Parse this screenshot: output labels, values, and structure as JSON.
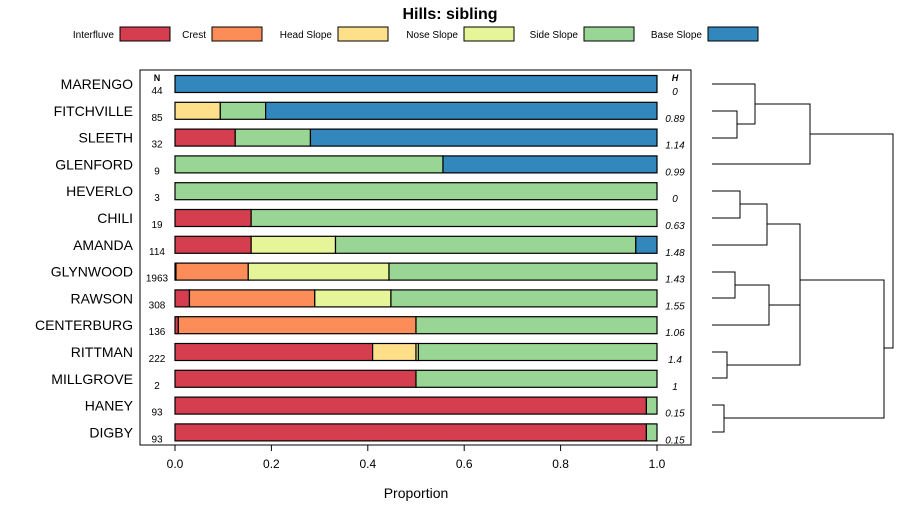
{
  "chart_data": {
    "type": "bar",
    "stacked": true,
    "orientation": "horizontal",
    "title": "Hills: sibling",
    "xlabel": "Proportion",
    "xlim": [
      0,
      1
    ],
    "xticks": [
      "0.0",
      "0.2",
      "0.4",
      "0.6",
      "0.8",
      "1.0"
    ],
    "n_header": "N",
    "h_header": "H",
    "legend": [
      {
        "name": "Interfluve",
        "color": "#d53e4f"
      },
      {
        "name": "Crest",
        "color": "#fc8d59"
      },
      {
        "name": "Head Slope",
        "color": "#fee08b"
      },
      {
        "name": "Nose Slope",
        "color": "#e6f598"
      },
      {
        "name": "Side Slope",
        "color": "#99d594"
      },
      {
        "name": "Base Slope",
        "color": "#3288bd"
      }
    ],
    "categories": [
      "MARENGO",
      "FITCHVILLE",
      "SLEETH",
      "GLENFORD",
      "HEVERLO",
      "CHILI",
      "AMANDA",
      "GLYNWOOD",
      "RAWSON",
      "CENTERBURG",
      "RITTMAN",
      "MILLGROVE",
      "HANEY",
      "DIGBY"
    ],
    "n": [
      "44",
      "85",
      "32",
      "9",
      "3",
      "19",
      "114",
      "1963",
      "308",
      "136",
      "222",
      "2",
      "93",
      "93"
    ],
    "h": [
      "0",
      "0.89",
      "1.14",
      "0.99",
      "0",
      "0.63",
      "1.48",
      "1.43",
      "1.55",
      "1.06",
      "1.4",
      "1",
      "0.15",
      "0.15"
    ],
    "series": [
      {
        "name": "Interfluve",
        "values": [
          0,
          0,
          0.125,
          0,
          0,
          0.158,
          0.158,
          0.002,
          0.03,
          0.007,
          0.41,
          0.5,
          0.978,
          0.978
        ]
      },
      {
        "name": "Crest",
        "values": [
          0,
          0,
          0,
          0,
          0,
          0,
          0,
          0.15,
          0.26,
          0.493,
          0,
          0,
          0,
          0
        ]
      },
      {
        "name": "Head Slope",
        "values": [
          0,
          0.094,
          0,
          0,
          0,
          0,
          0,
          0,
          0,
          0,
          0.09,
          0,
          0,
          0
        ]
      },
      {
        "name": "Nose Slope",
        "values": [
          0,
          0,
          0,
          0,
          0,
          0,
          0.175,
          0.292,
          0.158,
          0,
          0.005,
          0,
          0,
          0
        ]
      },
      {
        "name": "Side Slope",
        "values": [
          0,
          0.094,
          0.156,
          0.556,
          1,
          0.842,
          0.623,
          0.556,
          0.552,
          0.5,
          0.495,
          0.5,
          0.022,
          0.022
        ]
      },
      {
        "name": "Base Slope",
        "values": [
          1,
          0.812,
          0.719,
          0.444,
          0,
          0,
          0.044,
          0,
          0,
          0,
          0,
          0,
          0,
          0
        ]
      }
    ]
  }
}
